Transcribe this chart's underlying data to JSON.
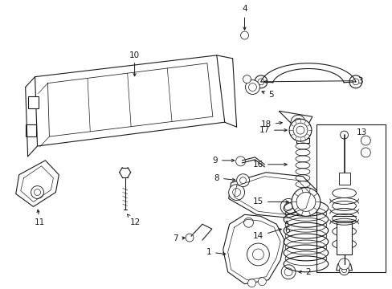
{
  "bg_color": "#ffffff",
  "lc": "#1a1a1a",
  "fig_w": 4.89,
  "fig_h": 3.6,
  "dpi": 100,
  "label_fs": 7.5,
  "label_fs_sm": 6.5
}
